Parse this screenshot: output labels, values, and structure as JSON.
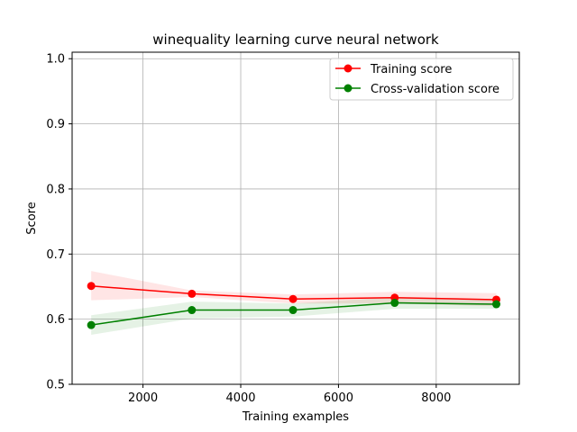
{
  "chart_data": {
    "type": "line",
    "title": "winequality learning curve neural network",
    "xlabel": "Training examples",
    "ylabel": "Score",
    "xlim": [
      550,
      9700
    ],
    "ylim": [
      0.5,
      1.01
    ],
    "xticks": [
      2000,
      4000,
      6000,
      8000
    ],
    "xtick_labels": [
      "2000",
      "4000",
      "6000",
      "8000"
    ],
    "yticks": [
      0.5,
      0.6,
      0.7,
      0.8,
      0.9,
      1.0
    ],
    "ytick_labels": [
      "0.5",
      "0.6",
      "0.7",
      "0.8",
      "0.9",
      "1.0"
    ],
    "grid": true,
    "legend_position": "top-right",
    "x": [
      940,
      3000,
      5070,
      7150,
      9230
    ],
    "series": [
      {
        "name": "Training score",
        "color": "#ff0000",
        "values": [
          0.651,
          0.639,
          0.631,
          0.633,
          0.63
        ],
        "band_lower": [
          0.629,
          0.634,
          0.624,
          0.624,
          0.62
        ],
        "band_upper": [
          0.674,
          0.644,
          0.638,
          0.642,
          0.64
        ]
      },
      {
        "name": "Cross-validation score",
        "color": "#008000",
        "values": [
          0.591,
          0.614,
          0.614,
          0.625,
          0.623
        ],
        "band_lower": [
          0.576,
          0.601,
          0.604,
          0.616,
          0.616
        ],
        "band_upper": [
          0.606,
          0.627,
          0.624,
          0.634,
          0.631
        ]
      }
    ]
  }
}
